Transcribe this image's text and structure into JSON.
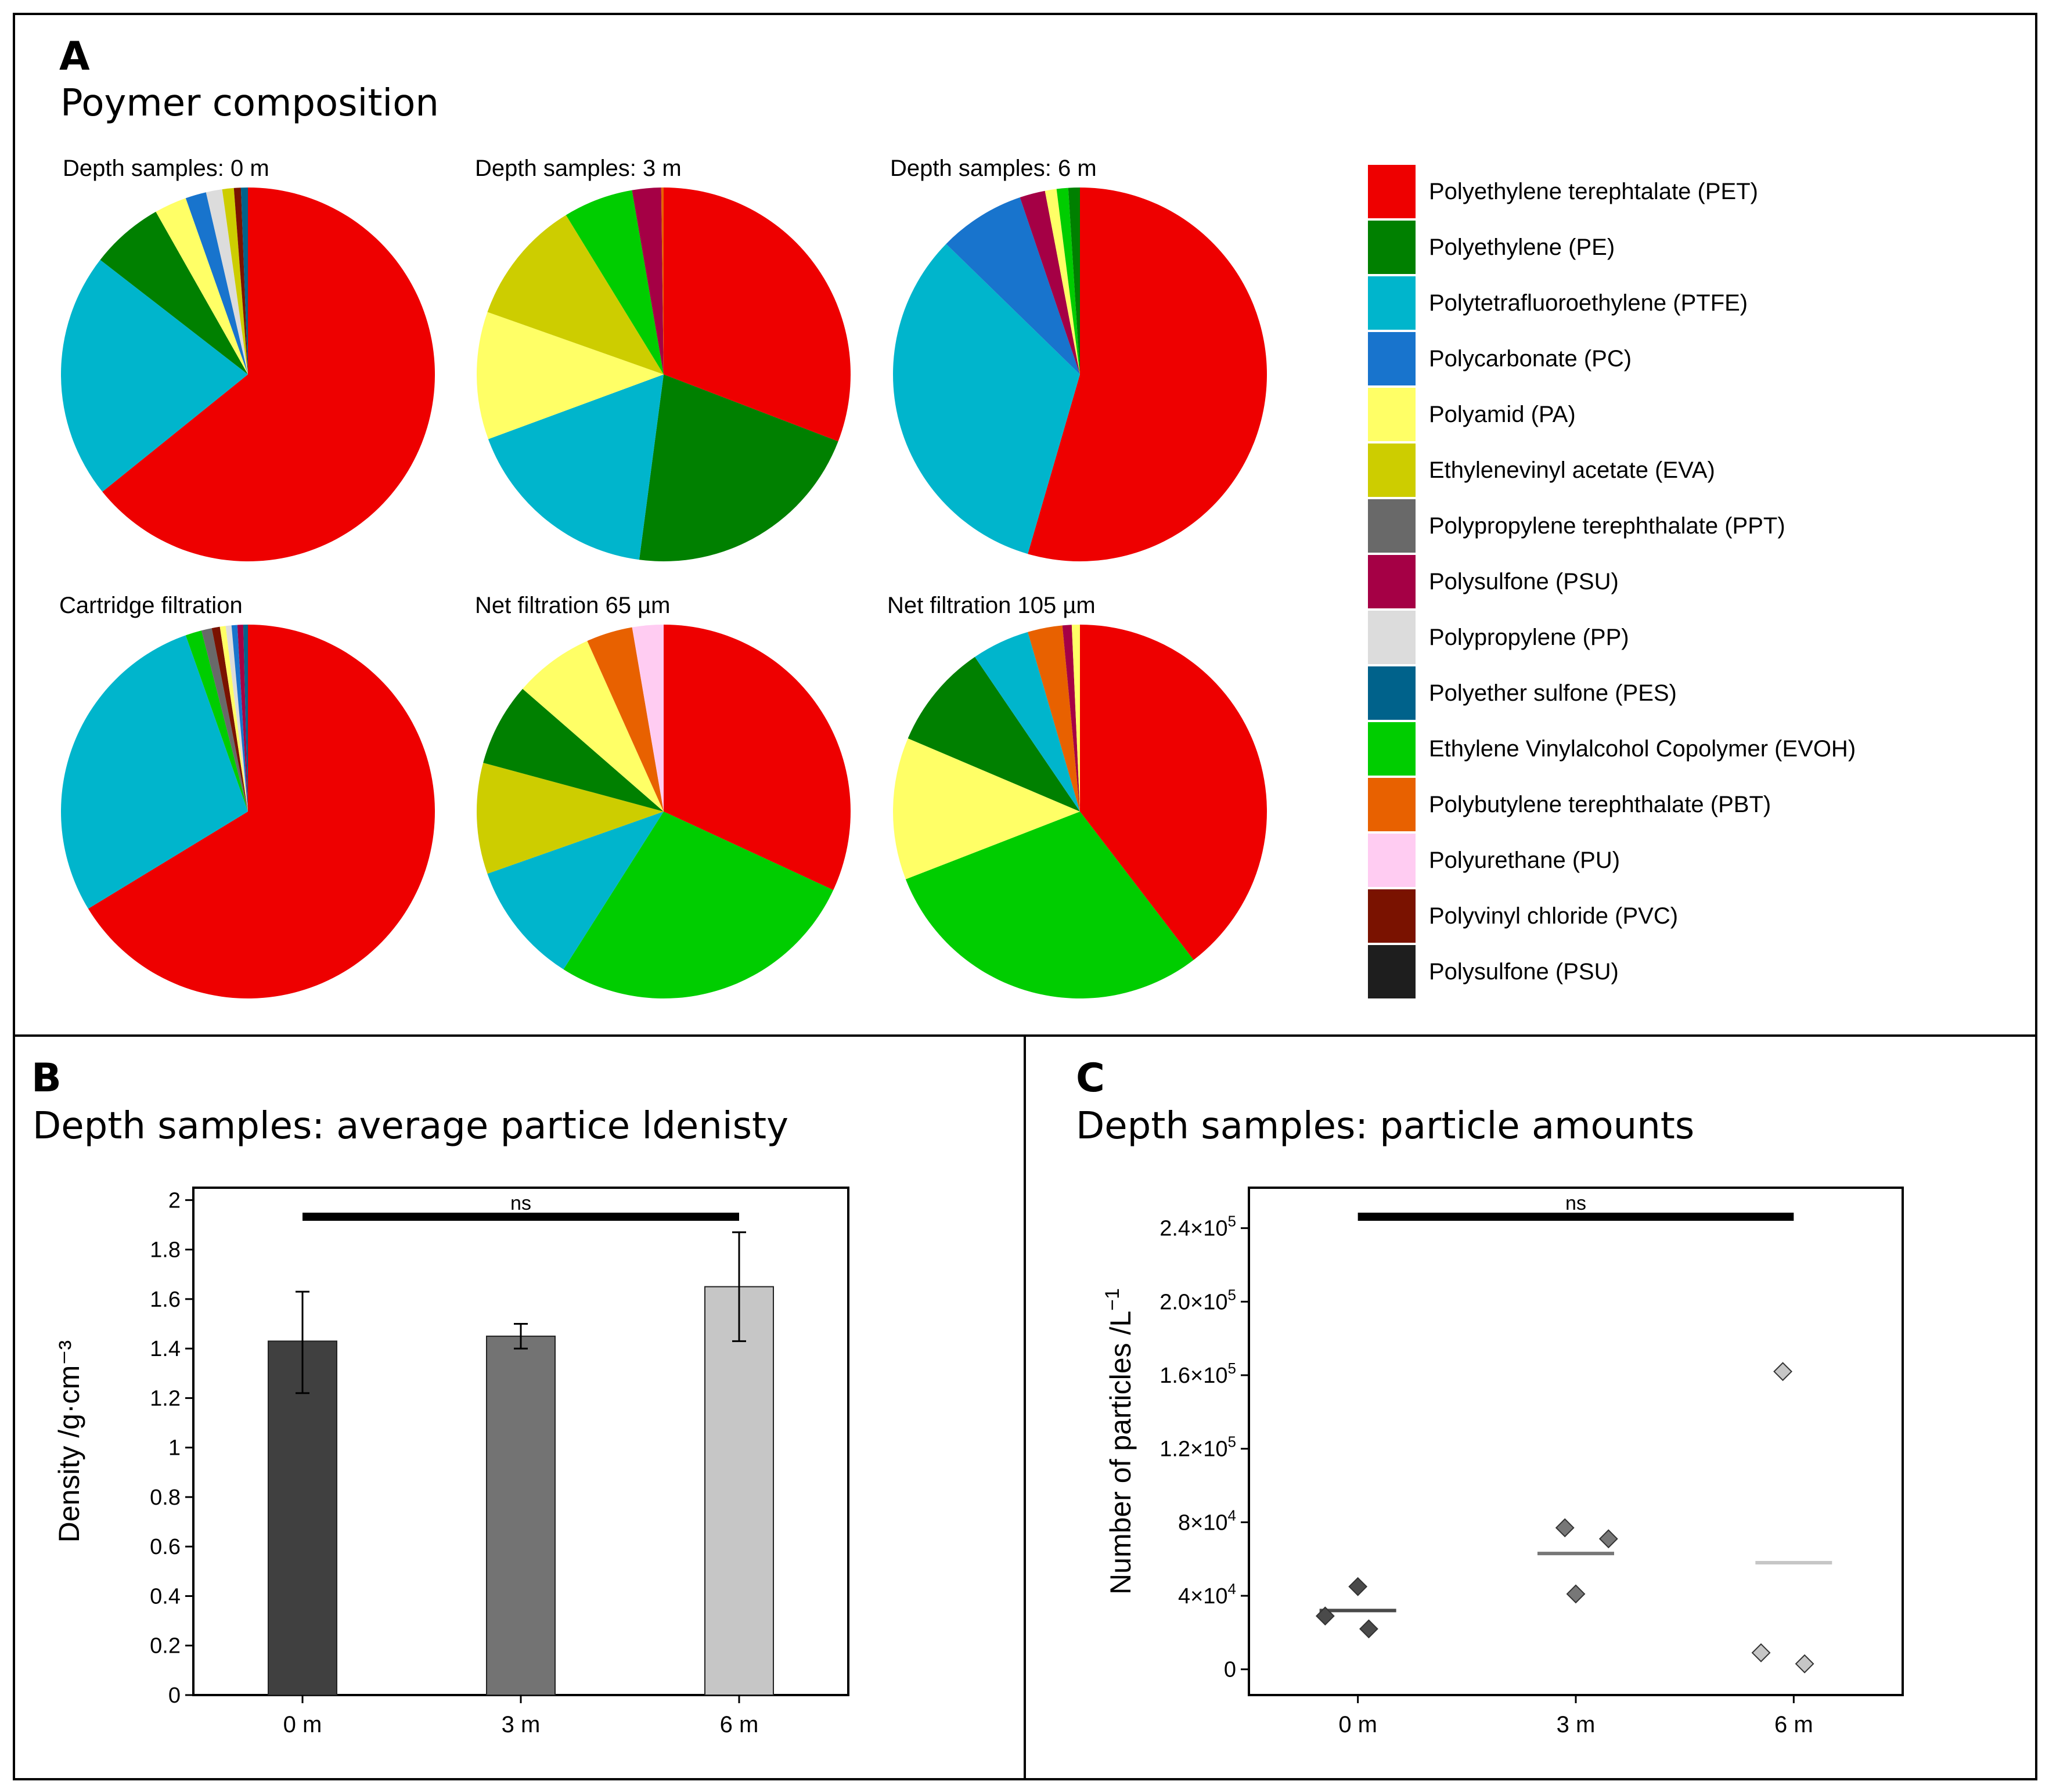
{
  "panel_a": {
    "letter": "A",
    "title": "Poymer composition"
  },
  "panel_b": {
    "letter": "B",
    "title": "Depth samples: average partice ldenisty"
  },
  "panel_c": {
    "letter": "C",
    "title": "Depth samples: particle amounts"
  },
  "chart_data": [
    {
      "type": "pie",
      "id": "pie-depth-0m",
      "title": "Depth samples: 0 m",
      "slices": [
        {
          "label": "Polyethylene terephtalate (PET)",
          "value": 64.2
        },
        {
          "label": "Polytetrafluoroethylene (PTFE)",
          "value": 21.3
        },
        {
          "label": "Polyethylene (PE)",
          "value": 6.3
        },
        {
          "label": "Polyamid (PA)",
          "value": 2.8
        },
        {
          "label": "Polycarbonate (PC)",
          "value": 1.8
        },
        {
          "label": "Polypropylene (PP)",
          "value": 1.4
        },
        {
          "label": "Ethylenevinyl acetate (EVA)",
          "value": 1.0
        },
        {
          "label": "Polyvinyl chloride (PVC)",
          "value": 0.6
        },
        {
          "label": "Polyether sulfone (PES)",
          "value": 0.6
        }
      ]
    },
    {
      "type": "pie",
      "id": "pie-depth-3m",
      "title": "Depth samples: 3 m",
      "slices": [
        {
          "label": "Polyethylene terephtalate (PET)",
          "value": 29.6
        },
        {
          "label": "Polyethylene (PE)",
          "value": 20.4
        },
        {
          "label": "Polytetrafluoroethylene (PTFE)",
          "value": 16.6
        },
        {
          "label": "Polyamid (PA)",
          "value": 10.6
        },
        {
          "label": "Ethylenevinyl acetate (EVA)",
          "value": 10.4
        },
        {
          "label": "Ethylene Vinylalcohol Copolymer (EVOH)",
          "value": 5.8
        },
        {
          "label": "Polysulfone (PSU)",
          "value": 2.4
        },
        {
          "label": "Polybutylene terephthalate (PBT)",
          "value": 0.2
        }
      ]
    },
    {
      "type": "pie",
      "id": "pie-depth-6m",
      "title": "Depth samples: 6 m",
      "slices": [
        {
          "label": "Polyethylene terephtalate (PET)",
          "value": 54.5
        },
        {
          "label": "Polytetrafluoroethylene (PTFE)",
          "value": 32.8
        },
        {
          "label": "Polycarbonate (PC)",
          "value": 7.5
        },
        {
          "label": "Polysulfone (PSU)",
          "value": 2.2
        },
        {
          "label": "Polyamid (PA)",
          "value": 1.0
        },
        {
          "label": "Ethylene Vinylalcohol Copolymer (EVOH)",
          "value": 1.0
        },
        {
          "label": "Polyethylene (PE)",
          "value": 1.0
        }
      ]
    },
    {
      "type": "pie",
      "id": "pie-cartridge",
      "title": "Cartridge filtration",
      "slices": [
        {
          "label": "Polyethylene terephtalate (PET)",
          "value": 66.3
        },
        {
          "label": "Polytetrafluoroethylene (PTFE)",
          "value": 28.3
        },
        {
          "label": "Ethylene Vinylalcohol Copolymer (EVOH)",
          "value": 1.4
        },
        {
          "label": "Polypropylene terephthalate (PPT)",
          "value": 0.9
        },
        {
          "label": "Polyvinyl chloride (PVC)",
          "value": 0.7
        },
        {
          "label": "Polyamid (PA)",
          "value": 0.5
        },
        {
          "label": "Polypropylene (PP)",
          "value": 0.5
        },
        {
          "label": "Polycarbonate (PC)",
          "value": 0.5
        },
        {
          "label": "Polysulfone (PSU)",
          "value": 0.5
        },
        {
          "label": "Polyether sulfone (PES)",
          "value": 0.4
        }
      ]
    },
    {
      "type": "pie",
      "id": "pie-net-65",
      "title": "Net filtration 65 µm",
      "slices": [
        {
          "label": "Polyethylene terephtalate (PET)",
          "value": 31.9
        },
        {
          "label": "Ethylene Vinylalcohol Copolymer (EVOH)",
          "value": 27.1
        },
        {
          "label": "Polytetrafluoroethylene (PTFE)",
          "value": 10.6
        },
        {
          "label": "Ethylenevinyl acetate (EVA)",
          "value": 9.6
        },
        {
          "label": "Polyethylene (PE)",
          "value": 7.2
        },
        {
          "label": "Polyamid (PA)",
          "value": 6.9
        },
        {
          "label": "Polybutylene terephthalate (PBT)",
          "value": 4.0
        },
        {
          "label": "Polyurethane (PU)",
          "value": 2.7
        }
      ]
    },
    {
      "type": "pie",
      "id": "pie-net-105",
      "title": "Net filtration 105 µm",
      "slices": [
        {
          "label": "Polyethylene terephtalate (PET)",
          "value": 39.6
        },
        {
          "label": "Ethylene Vinylalcohol Copolymer (EVOH)",
          "value": 29.5
        },
        {
          "label": "Polyamid (PA)",
          "value": 12.3
        },
        {
          "label": "Polyethylene (PE)",
          "value": 9.1
        },
        {
          "label": "Polytetrafluoroethylene (PTFE)",
          "value": 5.0
        },
        {
          "label": "Polybutylene terephthalate (PBT)",
          "value": 3.0
        },
        {
          "label": "Polysulfone (PSU)",
          "value": 0.8
        },
        {
          "label": "Polyamid (PA)",
          "value": 0.7
        }
      ]
    },
    {
      "type": "bar",
      "id": "density-bars",
      "categories": [
        "0 m",
        "3 m",
        "6 m"
      ],
      "values": [
        1.43,
        1.45,
        1.65
      ],
      "error_low": [
        1.22,
        1.4,
        1.43
      ],
      "error_high": [
        1.63,
        1.5,
        1.87
      ],
      "bar_colors": [
        "#404040",
        "#737373",
        "#c6c6c6"
      ],
      "ylabel": "Density /g·cm⁻³",
      "ylim": [
        0,
        2.05
      ],
      "yticks": [
        0,
        0.2,
        0.4,
        0.6,
        0.8,
        1,
        1.2,
        1.4,
        1.6,
        1.8,
        2
      ],
      "ytick_labels": [
        "0",
        "0.2",
        "0.4",
        "0.6",
        "0.8",
        "1",
        "1.2",
        "1.4",
        "1.6",
        "1.8",
        "2"
      ],
      "annotation": "ns"
    },
    {
      "type": "scatter",
      "id": "particle-amounts",
      "categories": [
        "0 m",
        "3 m",
        "6 m"
      ],
      "points": [
        {
          "category": "0 m",
          "offset": 0,
          "y": 45000
        },
        {
          "category": "0 m",
          "offset": -0.15,
          "y": 29000
        },
        {
          "category": "0 m",
          "offset": 0.05,
          "y": 22000
        },
        {
          "category": "3 m",
          "offset": -0.05,
          "y": 77000
        },
        {
          "category": "3 m",
          "offset": 0.15,
          "y": 71000
        },
        {
          "category": "3 m",
          "offset": 0,
          "y": 41000
        },
        {
          "category": "6 m",
          "offset": -0.05,
          "y": 162000
        },
        {
          "category": "6 m",
          "offset": -0.15,
          "y": 9000
        },
        {
          "category": "6 m",
          "offset": 0.05,
          "y": 3000
        }
      ],
      "means": [
        32000,
        63000,
        58000
      ],
      "point_colors": [
        "#4a4a4a",
        "#777777",
        "#c6c6c6"
      ],
      "ylabel": "Number of particles /L",
      "ylabel_sup": "−1",
      "ylim": [
        -14000,
        262000
      ],
      "yticks": [
        0,
        40000,
        80000,
        120000,
        160000,
        200000,
        240000
      ],
      "ytick_labels": [
        {
          "base": "0",
          "exp": ""
        },
        {
          "base": "4×10",
          "exp": "4"
        },
        {
          "base": "8×10",
          "exp": "4"
        },
        {
          "base": "1.2×10",
          "exp": "5"
        },
        {
          "base": "1.6×10",
          "exp": "5"
        },
        {
          "base": "2.0×10",
          "exp": "5"
        },
        {
          "base": "2.4×10",
          "exp": "5"
        }
      ],
      "annotation": "ns"
    }
  ],
  "legend": {
    "items": [
      {
        "label": "Polyethylene terephtalate (PET)",
        "color": "#ee0000"
      },
      {
        "label": "Polyethylene (PE)",
        "color": "#008000"
      },
      {
        "label": "Polytetrafluoroethylene (PTFE)",
        "color": "#00b5cc"
      },
      {
        "label": "Polycarbonate (PC)",
        "color": "#1874cd"
      },
      {
        "label": "Polyamid (PA)",
        "color": "#ffff66"
      },
      {
        "label": "Ethylenevinyl acetate (EVA)",
        "color": "#cdcd00"
      },
      {
        "label": "Polypropylene terephthalate (PPT)",
        "color": "#696969"
      },
      {
        "label": "Polysulfone (PSU)",
        "color": "#a50045"
      },
      {
        "label": "Polypropylene (PP)",
        "color": "#dcdcdc"
      },
      {
        "label": "Polyether sulfone (PES)",
        "color": "#00628b"
      },
      {
        "label": "Ethylene Vinylalcohol Copolymer (EVOH)",
        "color": "#00cd00"
      },
      {
        "label": "Polybutylene terephthalate (PBT)",
        "color": "#e86100"
      },
      {
        "label": "Polyurethane (PU)",
        "color": "#ffccf2"
      },
      {
        "label": "Polyvinyl chloride (PVC)",
        "color": "#7a1200"
      },
      {
        "label": "Polysulfone (PSU)",
        "color": "#1e1e1e"
      }
    ]
  }
}
